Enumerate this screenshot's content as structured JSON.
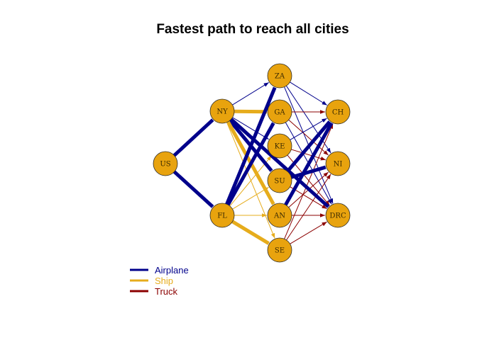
{
  "title": "Fastest path to reach all cities",
  "colors": {
    "airplane": "#00008B",
    "ship": "#E6AC1C",
    "truck": "#8B0000",
    "node_fill": "#E8A30E",
    "node_stroke": "#2a2a2a",
    "background": "#FFFFFF"
  },
  "legend": [
    {
      "label": "Airplane",
      "mode": "airplane"
    },
    {
      "label": "Ship",
      "mode": "ship"
    },
    {
      "label": "Truck",
      "mode": "truck"
    }
  ],
  "nodes": [
    "US",
    "NY",
    "FL",
    "ZA",
    "GA",
    "KE",
    "SU",
    "AN",
    "SE",
    "CH",
    "NI",
    "DRC"
  ],
  "edges": [
    {
      "from": "US",
      "to": "NY",
      "mode": "airplane",
      "bold": true
    },
    {
      "from": "US",
      "to": "FL",
      "mode": "airplane",
      "bold": true
    },
    {
      "from": "NY",
      "to": "ZA",
      "mode": "airplane",
      "bold": false
    },
    {
      "from": "NY",
      "to": "GA",
      "mode": "ship",
      "bold": true
    },
    {
      "from": "NY",
      "to": "KE",
      "mode": "airplane",
      "bold": false
    },
    {
      "from": "NY",
      "to": "SU",
      "mode": "airplane",
      "bold": true
    },
    {
      "from": "NY",
      "to": "AN",
      "mode": "ship",
      "bold": true
    },
    {
      "from": "NY",
      "to": "SE",
      "mode": "ship",
      "bold": false
    },
    {
      "from": "FL",
      "to": "ZA",
      "mode": "airplane",
      "bold": true
    },
    {
      "from": "FL",
      "to": "GA",
      "mode": "airplane",
      "bold": true
    },
    {
      "from": "FL",
      "to": "KE",
      "mode": "ship",
      "bold": false
    },
    {
      "from": "FL",
      "to": "SU",
      "mode": "ship",
      "bold": false
    },
    {
      "from": "FL",
      "to": "AN",
      "mode": "ship",
      "bold": false
    },
    {
      "from": "FL",
      "to": "SE",
      "mode": "ship",
      "bold": true
    },
    {
      "from": "ZA",
      "to": "CH",
      "mode": "airplane",
      "bold": false
    },
    {
      "from": "ZA",
      "to": "NI",
      "mode": "airplane",
      "bold": false
    },
    {
      "from": "ZA",
      "to": "DRC",
      "mode": "airplane",
      "bold": false
    },
    {
      "from": "GA",
      "to": "CH",
      "mode": "truck",
      "bold": false
    },
    {
      "from": "GA",
      "to": "NI",
      "mode": "truck",
      "bold": false
    },
    {
      "from": "GA",
      "to": "DRC",
      "mode": "airplane",
      "bold": false
    },
    {
      "from": "KE",
      "to": "CH",
      "mode": "airplane",
      "bold": false
    },
    {
      "from": "KE",
      "to": "NI",
      "mode": "truck",
      "bold": false
    },
    {
      "from": "KE",
      "to": "DRC",
      "mode": "truck",
      "bold": false
    },
    {
      "from": "SU",
      "to": "CH",
      "mode": "airplane",
      "bold": true
    },
    {
      "from": "SU",
      "to": "NI",
      "mode": "airplane",
      "bold": true
    },
    {
      "from": "SU",
      "to": "DRC",
      "mode": "truck",
      "bold": false
    },
    {
      "from": "AN",
      "to": "CH",
      "mode": "airplane",
      "bold": true
    },
    {
      "from": "AN",
      "to": "NI",
      "mode": "truck",
      "bold": false
    },
    {
      "from": "AN",
      "to": "DRC",
      "mode": "truck",
      "bold": false
    },
    {
      "from": "SE",
      "to": "CH",
      "mode": "truck",
      "bold": false
    },
    {
      "from": "SE",
      "to": "NI",
      "mode": "truck",
      "bold": false
    },
    {
      "from": "SE",
      "to": "DRC",
      "mode": "truck",
      "bold": false
    },
    {
      "from": "NY",
      "to": "DRC",
      "mode": "airplane",
      "bold": true
    }
  ]
}
